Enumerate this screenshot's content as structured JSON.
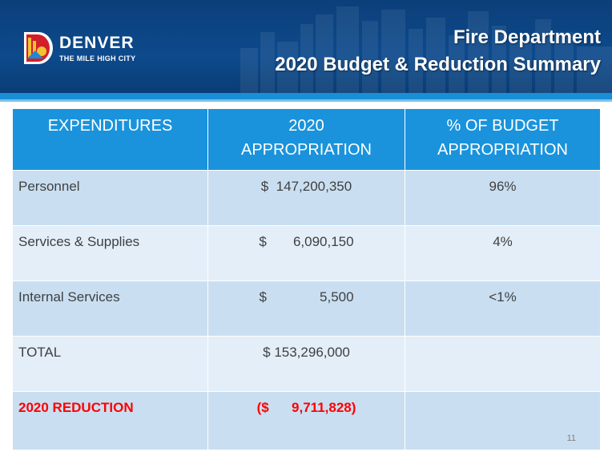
{
  "header": {
    "logo_name": "DENVER",
    "logo_tagline": "THE MILE HIGH CITY",
    "title_line1": "Fire Department",
    "title_line2": "2020 Budget & Reduction Summary"
  },
  "table": {
    "headers": [
      [
        "EXPENDITURES"
      ],
      [
        "2020",
        "APPROPRIATION"
      ],
      [
        "% OF BUDGET",
        "APPROPRIATION"
      ]
    ],
    "rows": [
      {
        "label": "Personnel",
        "amount": "$  147,200,350",
        "percent": "96%"
      },
      {
        "label": "Services & Supplies",
        "amount": "$       6,090,150",
        "percent": "4%"
      },
      {
        "label": "Internal Services",
        "amount": "$              5,500",
        "percent": "<1%"
      },
      {
        "label": "TOTAL",
        "amount": "$ 153,296,000",
        "percent": ""
      },
      {
        "label": "2020 REDUCTION",
        "amount": "($      9,711,828)",
        "percent": ""
      }
    ]
  },
  "page_number": "11",
  "colors": {
    "header_bg": "#0d4a8c",
    "table_header": "#1a93dc",
    "row_dark": "#c9dff1",
    "row_light": "#e3eef8",
    "reduction_text": "#ff0000"
  }
}
